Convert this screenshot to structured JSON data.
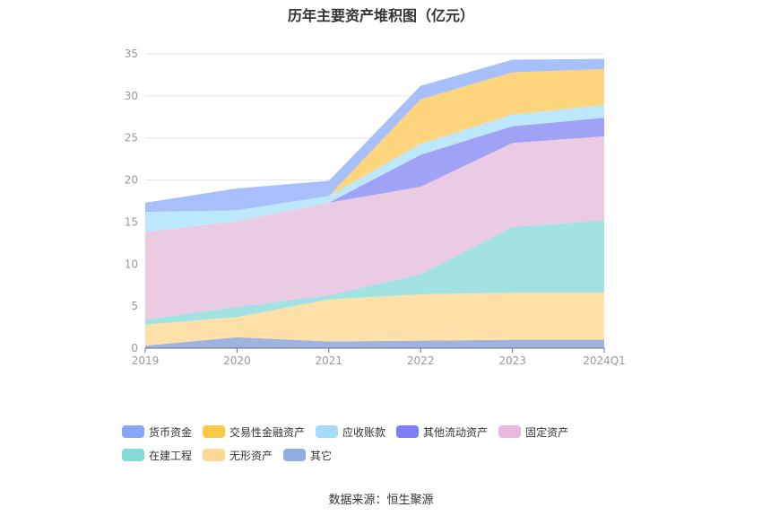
{
  "chart_data": {
    "type": "area",
    "stacked": true,
    "title": "历年主要资产堆积图（亿元）",
    "categories": [
      "2019",
      "2020",
      "2021",
      "2022",
      "2023",
      "2024Q1"
    ],
    "ylim": [
      0,
      35
    ],
    "yticks": [
      0,
      5,
      10,
      15,
      20,
      25,
      30,
      35
    ],
    "grid": true,
    "legend_position": "bottom",
    "source": "数据来源：恒生聚源",
    "series": [
      {
        "name": "其它",
        "color": "#9db4de",
        "values": [
          0.3,
          1.3,
          0.8,
          0.9,
          1.0,
          1.0
        ]
      },
      {
        "name": "无形资产",
        "color": "#ffe0a8",
        "values": [
          2.5,
          2.4,
          5.0,
          5.5,
          5.6,
          5.6
        ]
      },
      {
        "name": "在建工程",
        "color": "#a3e2e3",
        "values": [
          0.6,
          1.2,
          0.5,
          2.4,
          7.8,
          8.6
        ]
      },
      {
        "name": "固定资产",
        "color": "#ebcae3",
        "values": [
          10.4,
          10.2,
          11.0,
          10.4,
          10.0,
          10.0
        ]
      },
      {
        "name": "其他流动资产",
        "color": "#a0a2f5",
        "values": [
          0.0,
          0.0,
          0.0,
          3.8,
          2.0,
          2.2
        ]
      },
      {
        "name": "应收账款",
        "color": "#bde7fb",
        "values": [
          2.4,
          1.3,
          0.8,
          1.3,
          1.4,
          1.5
        ]
      },
      {
        "name": "交易性金融资产",
        "color": "#fed47c",
        "values": [
          0.0,
          0.0,
          0.0,
          5.3,
          5.0,
          4.3
        ]
      },
      {
        "name": "货币资金",
        "color": "#a7bffb",
        "values": [
          1.1,
          2.6,
          1.8,
          1.6,
          1.5,
          1.2
        ]
      }
    ]
  },
  "legend": [
    {
      "name": "货币资金",
      "color": "#88a7f8"
    },
    {
      "name": "交易性金融资产",
      "color": "#fdc849"
    },
    {
      "name": "应收账款",
      "color": "#a6dcfa"
    },
    {
      "name": "其他流动资产",
      "color": "#7f7ef4"
    },
    {
      "name": "固定资产",
      "color": "#e9b8dc"
    },
    {
      "name": "在建工程",
      "color": "#87d9d6"
    },
    {
      "name": "无形资产",
      "color": "#ffd993"
    },
    {
      "name": "其它",
      "color": "#92aee0"
    }
  ]
}
